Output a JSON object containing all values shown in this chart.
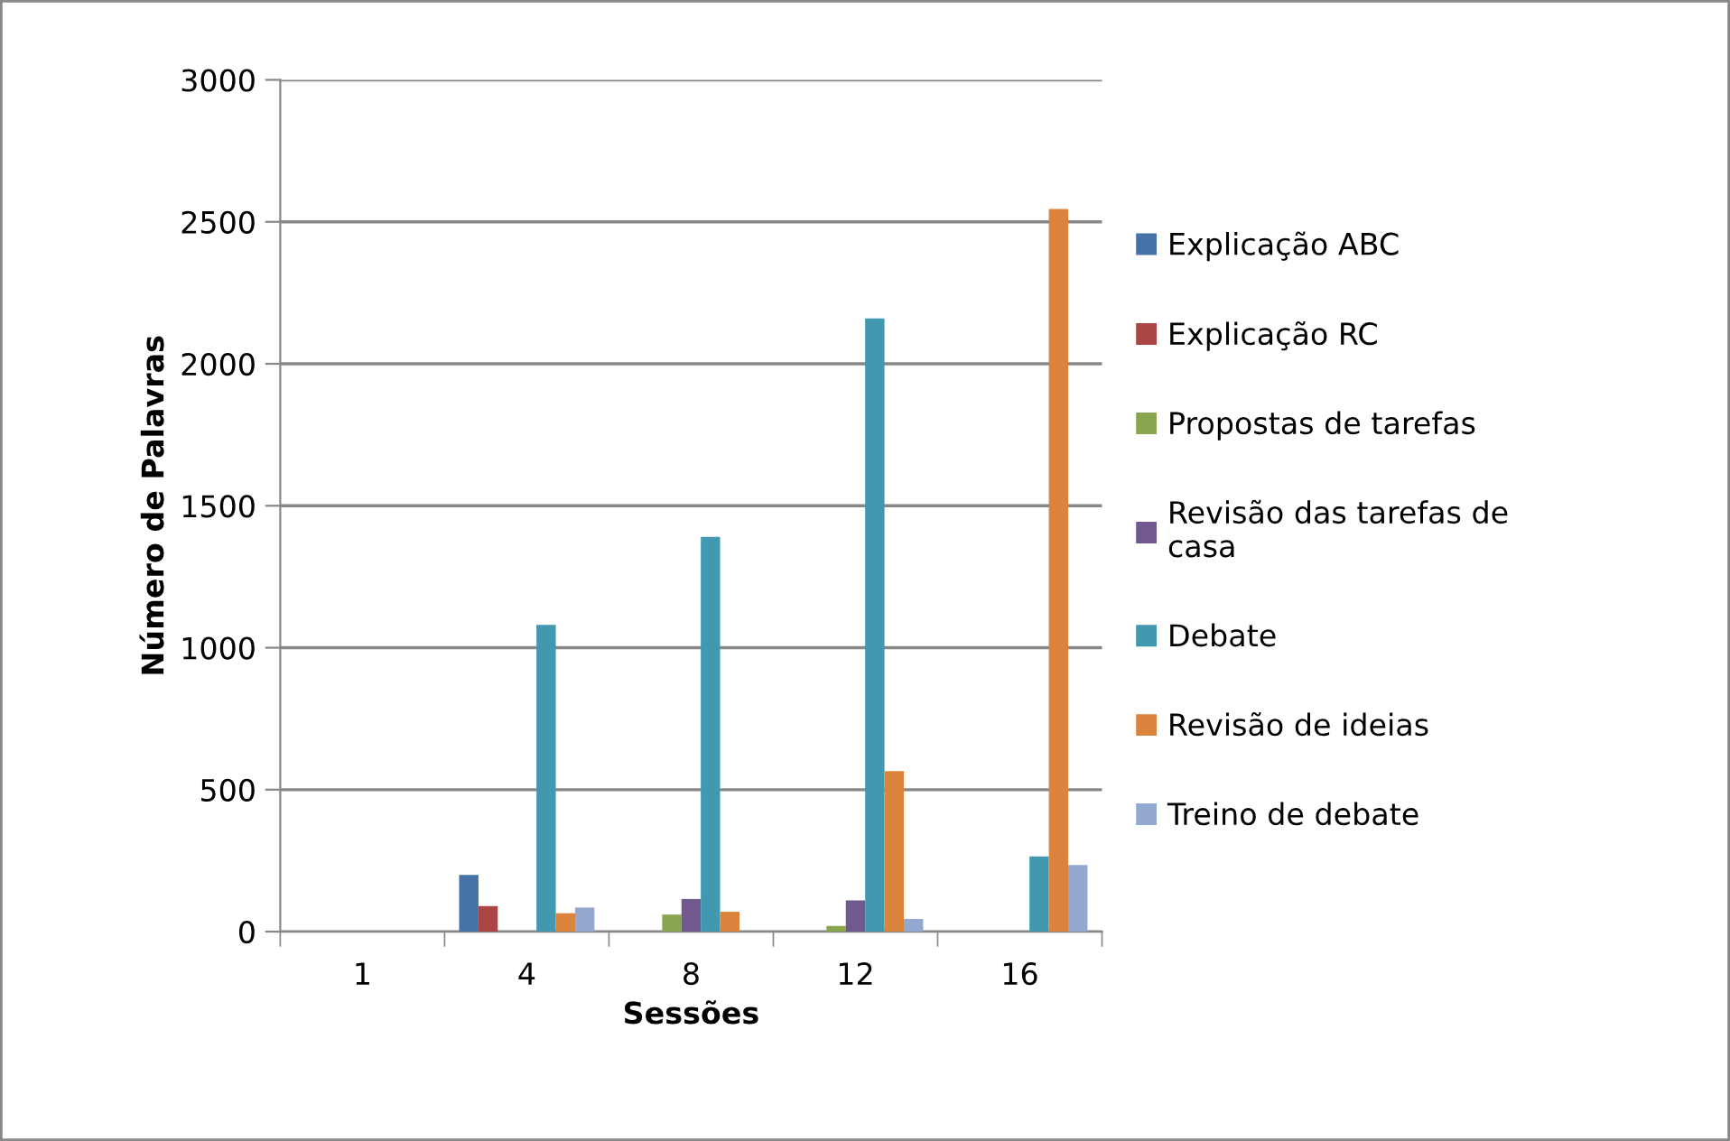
{
  "chart_data": {
    "type": "bar",
    "xlabel": "Sessões",
    "ylabel": "Número de Palavras",
    "categories": [
      "1",
      "4",
      "8",
      "12",
      "16"
    ],
    "series": [
      {
        "name": "Explicação ABC",
        "color": "#4572a7",
        "values": [
          0,
          200,
          0,
          0,
          0
        ]
      },
      {
        "name": "Explicação RC",
        "color": "#aa4643",
        "values": [
          0,
          90,
          0,
          0,
          0
        ]
      },
      {
        "name": "Propostas de tarefas",
        "color": "#89a54e",
        "values": [
          0,
          0,
          60,
          20,
          0
        ]
      },
      {
        "name": "Revisão das tarefas de casa",
        "color": "#71588f",
        "values": [
          0,
          0,
          115,
          110,
          0
        ]
      },
      {
        "name": "Debate",
        "color": "#4198af",
        "values": [
          0,
          1080,
          1390,
          2160,
          265
        ]
      },
      {
        "name": "Revisão de ideias",
        "color": "#db843d",
        "values": [
          0,
          65,
          70,
          565,
          2545
        ]
      },
      {
        "name": "Treino de debate",
        "color": "#93a9cf",
        "values": [
          0,
          85,
          0,
          45,
          235
        ]
      }
    ],
    "ylim": [
      0,
      3000
    ],
    "yticks": [
      0,
      500,
      1000,
      1500,
      2000,
      2500,
      3000
    ],
    "grid": "y",
    "legend": "right"
  }
}
